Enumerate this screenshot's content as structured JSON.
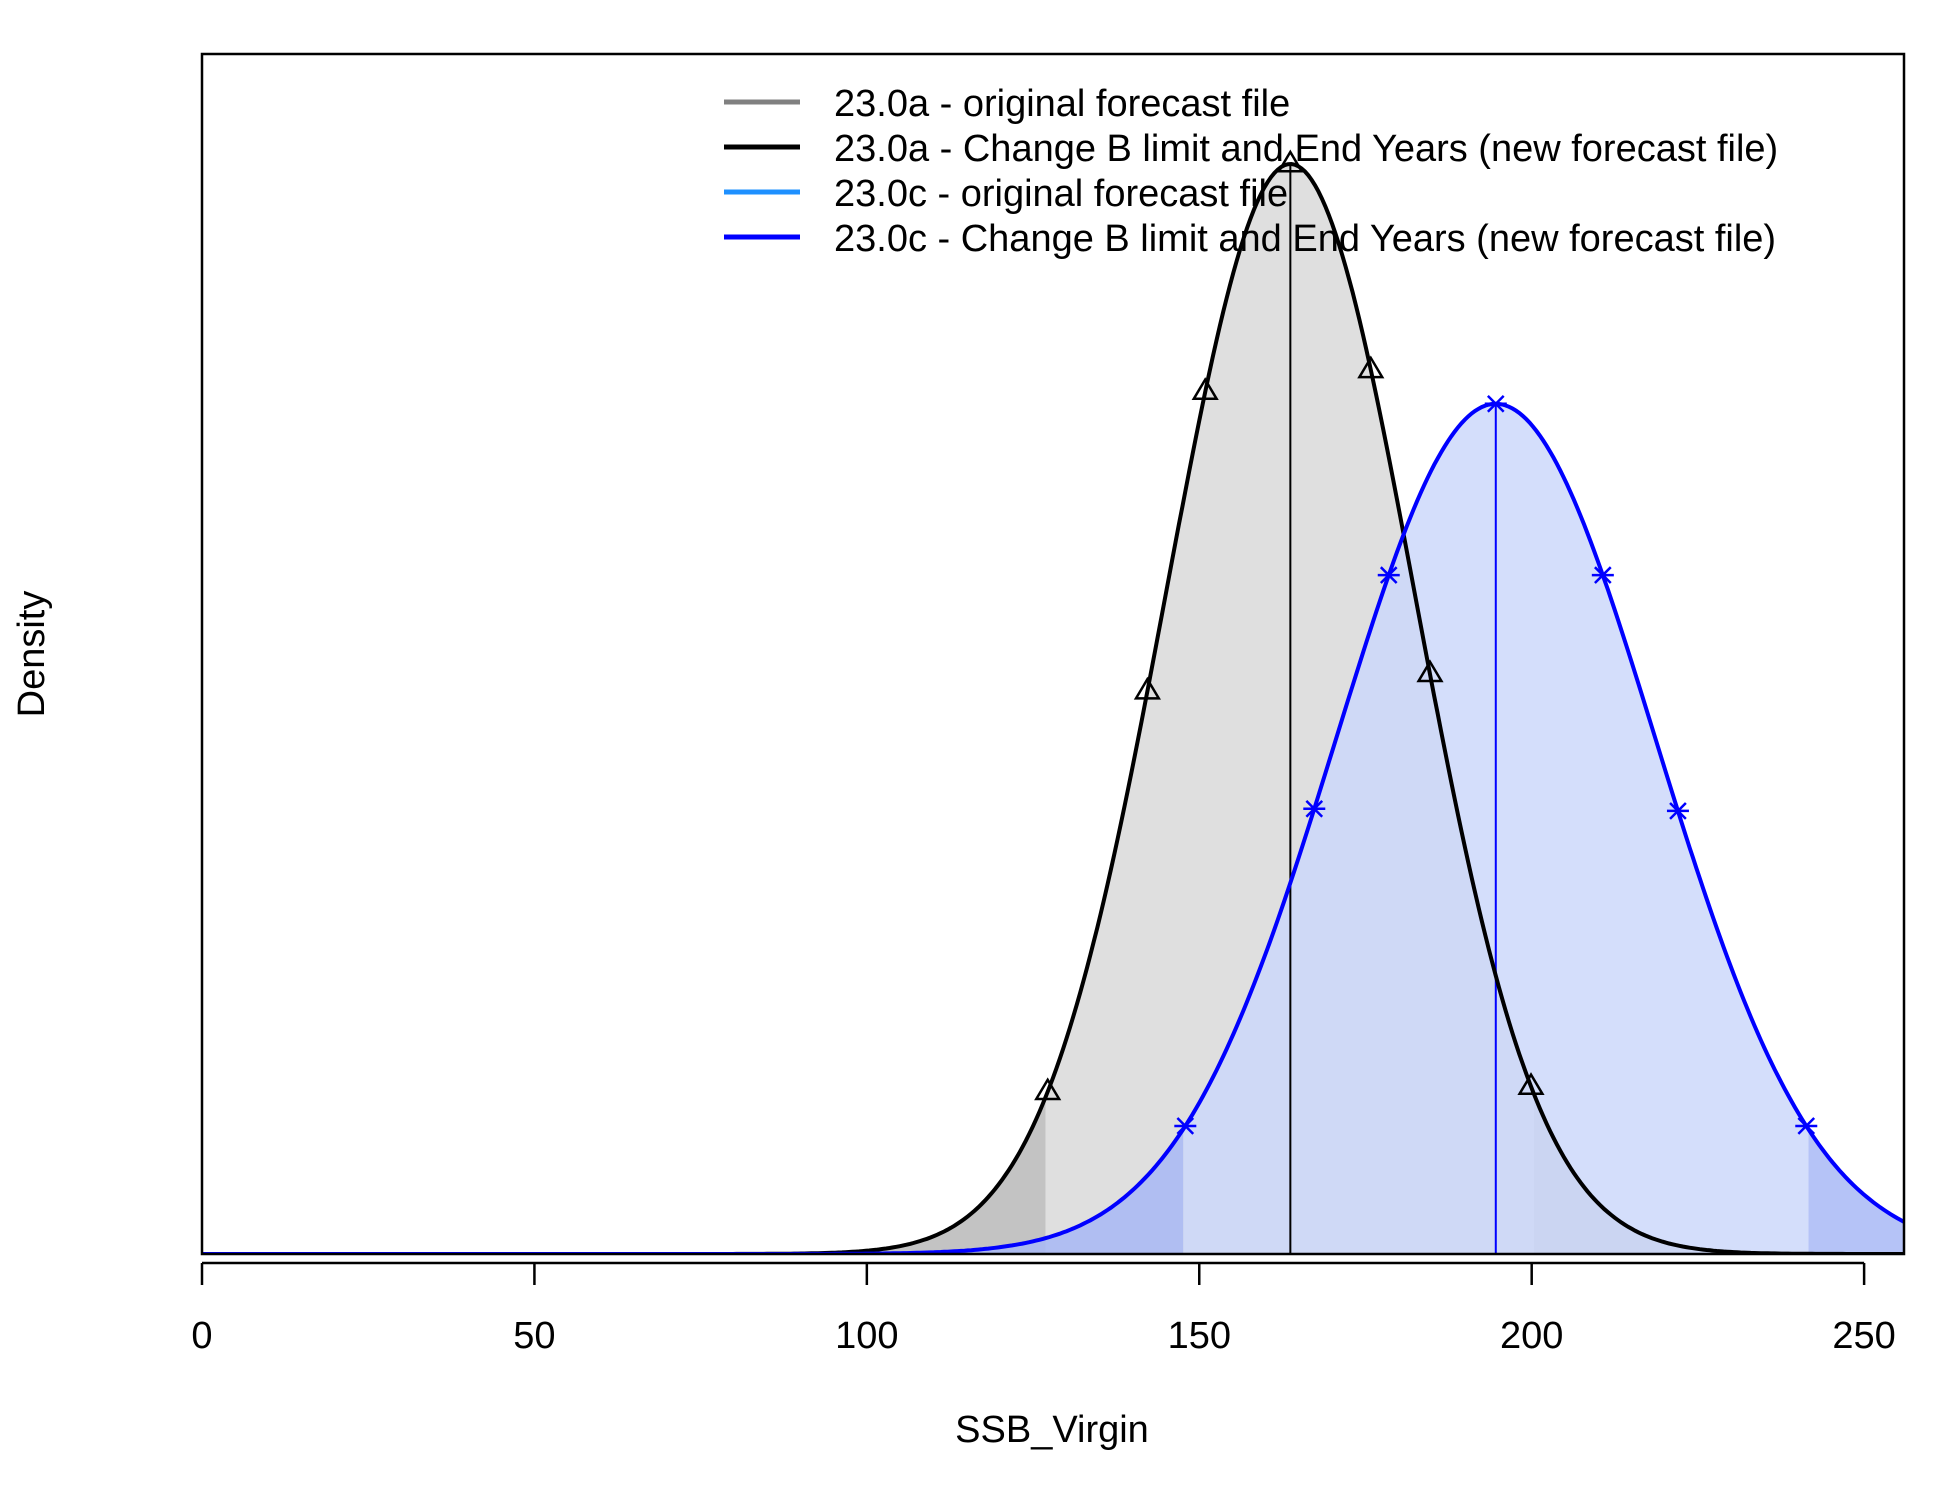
{
  "chart_data": {
    "type": "area",
    "title": "",
    "xlabel": "SSB_Virgin",
    "ylabel": "Density",
    "xlim": [
      0,
      256
    ],
    "xticks": [
      0,
      50,
      100,
      150,
      200,
      250
    ],
    "y_axis_ticks_shown": false,
    "grid": false,
    "legend_position": "top-right",
    "legend": [
      {
        "label": "23.0a - original forecast file",
        "color": "#808080"
      },
      {
        "label": "23.0a - Change B limit and End Years (new forecast file)",
        "color": "#000000"
      },
      {
        "label": "23.0c - original forecast file",
        "color": "#1e90ff"
      },
      {
        "label": "23.0c - Change B limit and End Years (new forecast file)",
        "color": "#0000ff"
      }
    ],
    "series": [
      {
        "name": "23.0a - Change B limit and End Years (new forecast file)",
        "distribution": "normal",
        "mean": 163.7,
        "sd": 18.7,
        "relative_peak": 1.0,
        "ci_95": [
          126.9,
          200.3
        ],
        "marker": "triangle",
        "marker_x": [
          127.2,
          142.2,
          150.9,
          163.7,
          175.8,
          184.7,
          199.9
        ],
        "line_color": "#000000",
        "fill_color": "#d9d9d9",
        "tail_fill_color": "#b8b8b8"
      },
      {
        "name": "23.0c - Change B limit and End Years (new forecast file)",
        "distribution": "normal",
        "mean": 194.6,
        "sd": 24.0,
        "relative_peak": 0.78,
        "ci_95": [
          147.6,
          241.6
        ],
        "marker": "asterisk",
        "marker_x": [
          147.9,
          167.3,
          178.5,
          194.6,
          210.7,
          222.0,
          241.3
        ],
        "line_color": "#0000ff",
        "fill_color": "#ccd8fa",
        "tail_fill_color": "#a8b8f6"
      }
    ]
  }
}
